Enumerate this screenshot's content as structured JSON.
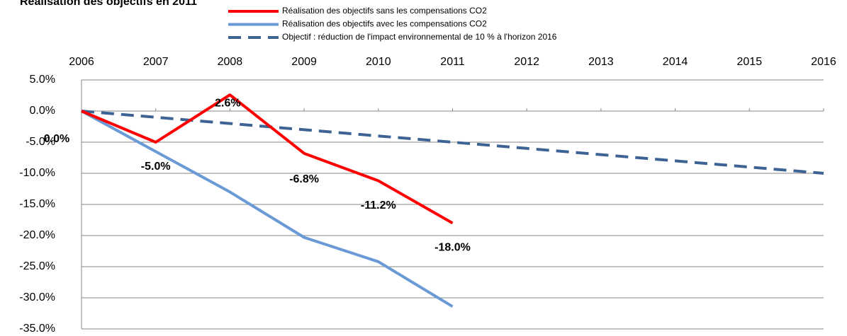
{
  "chart_data": {
    "type": "line",
    "title": "Réalisation des objectifs en 2011",
    "x": [
      2006,
      2007,
      2008,
      2009,
      2010,
      2011,
      2012,
      2013,
      2014,
      2015,
      2016
    ],
    "xlim": [
      2006,
      2016
    ],
    "xticks": [
      2006,
      2007,
      2008,
      2009,
      2010,
      2011,
      2012,
      2013,
      2014,
      2015,
      2016
    ],
    "ylim": [
      -35,
      5
    ],
    "yticks": [
      {
        "value": 5,
        "label": "5.0%"
      },
      {
        "value": 0,
        "label": "0.0%"
      },
      {
        "value": -5,
        "label": "-5.0%"
      },
      {
        "value": -10,
        "label": "-10.0%"
      },
      {
        "value": -15,
        "label": "-15.0%"
      },
      {
        "value": -20,
        "label": "-20.0%"
      },
      {
        "value": -25,
        "label": "-25.0%"
      },
      {
        "value": -30,
        "label": "-30.0%"
      },
      {
        "value": -35,
        "label": "-35.0%"
      }
    ],
    "grid": true,
    "legend": "top",
    "series": [
      {
        "name": "Réalisation des objectifs sans les compensations CO2",
        "color": "#ff0000",
        "style": "solid",
        "values": [
          0,
          -5.0,
          2.6,
          -6.8,
          -11.2,
          -18.0,
          null,
          null,
          null,
          null,
          null
        ],
        "value_labels": [
          "0.0%",
          "-5.0%",
          "2.6%",
          "-6.8%",
          "-11.2%",
          "-18.0%",
          null,
          null,
          null,
          null,
          null
        ]
      },
      {
        "name": "Réalisation des objectifs avec les compensations CO2",
        "color": "#6a9ad6",
        "style": "solid",
        "values": [
          0,
          -6.5,
          -13.0,
          -20.3,
          -24.2,
          -31.4,
          null,
          null,
          null,
          null,
          null
        ]
      },
      {
        "name": "Objectif : réduction de l'impact environnemental de 10 % à l'horizon 2016",
        "color": "#3c6394",
        "style": "dashed",
        "values": [
          0,
          -1,
          -2,
          -3,
          -4,
          -5,
          -6,
          -7,
          -8,
          -9,
          -10
        ]
      }
    ]
  }
}
